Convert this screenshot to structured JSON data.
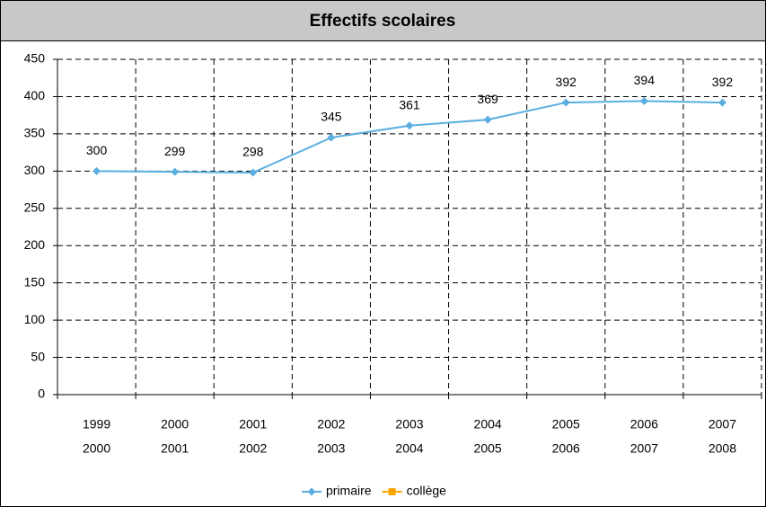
{
  "chart_data": {
    "type": "line",
    "title": "Effectifs scolaires",
    "categories": [
      [
        "1999",
        "2000"
      ],
      [
        "2000",
        "2001"
      ],
      [
        "2001",
        "2002"
      ],
      [
        "2002",
        "2003"
      ],
      [
        "2003",
        "2004"
      ],
      [
        "2004",
        "2005"
      ],
      [
        "2005",
        "2006"
      ],
      [
        "2006",
        "2007"
      ],
      [
        "2007",
        "2008"
      ]
    ],
    "series": [
      {
        "name": "primaire",
        "color": "#5aaee0",
        "values": [
          300,
          299,
          298,
          345,
          361,
          369,
          392,
          394,
          392
        ]
      },
      {
        "name": "collège",
        "color": "#ffa500",
        "values": [
          null,
          null,
          null,
          null,
          null,
          null,
          null,
          null,
          null
        ]
      }
    ],
    "ylim": [
      0,
      450
    ],
    "yticks": [
      0,
      50,
      100,
      150,
      200,
      250,
      300,
      350,
      400,
      450
    ],
    "grid": true,
    "legend": "bottom"
  }
}
